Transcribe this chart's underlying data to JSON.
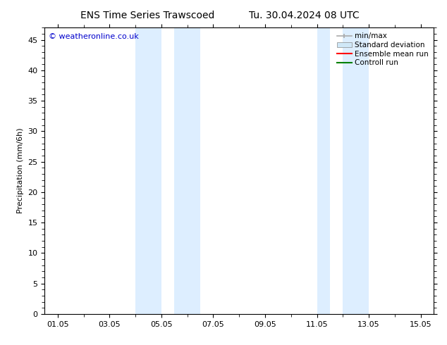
{
  "title_left": "ENS Time Series Trawscoed",
  "title_right": "Tu. 30.04.2024 08 UTC",
  "ylabel": "Precipitation (mm/6h)",
  "watermark": "© weatheronline.co.uk",
  "watermark_color": "#0000cc",
  "xlim_start": 0.5,
  "xlim_end": 15.5,
  "ylim_min": 0,
  "ylim_max": 47,
  "yticks": [
    0,
    5,
    10,
    15,
    20,
    25,
    30,
    35,
    40,
    45
  ],
  "xtick_labels": [
    "01.05",
    "03.05",
    "05.05",
    "07.05",
    "09.05",
    "11.05",
    "13.05",
    "15.05"
  ],
  "xtick_positions": [
    1,
    3,
    5,
    7,
    9,
    11,
    13,
    15
  ],
  "shaded_bands": [
    {
      "x_start": 4.0,
      "x_end": 5.0
    },
    {
      "x_start": 5.5,
      "x_end": 6.5
    },
    {
      "x_start": 11.0,
      "x_end": 11.5
    },
    {
      "x_start": 12.0,
      "x_end": 13.0
    }
  ],
  "shaded_color": "#ddeeff",
  "legend_entries": [
    {
      "label": "min/max",
      "color": "#aaaaaa",
      "lw": 1.2,
      "style": "minmax"
    },
    {
      "label": "Standard deviation",
      "color": "#d0e8f8",
      "lw": 8,
      "style": "bar"
    },
    {
      "label": "Ensemble mean run",
      "color": "#ff0000",
      "lw": 1.5,
      "style": "line"
    },
    {
      "label": "Controll run",
      "color": "#008000",
      "lw": 1.5,
      "style": "line"
    }
  ],
  "bg_color": "#ffffff",
  "axis_color": "#000000",
  "title_fontsize": 10,
  "label_fontsize": 8,
  "tick_fontsize": 8,
  "legend_fontsize": 7.5
}
